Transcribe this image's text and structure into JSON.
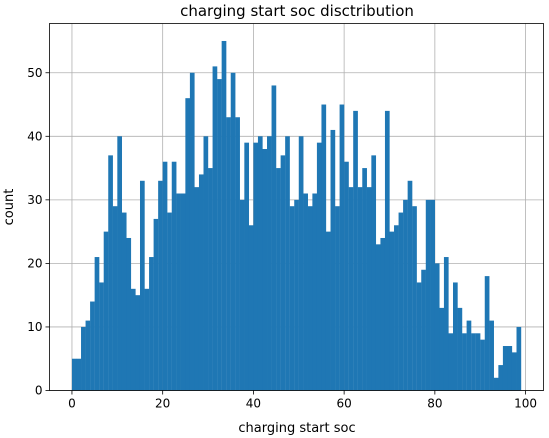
{
  "chart_data": {
    "type": "bar",
    "title": "charging start soc disctribution",
    "xlabel": "charging start soc",
    "ylabel": "count",
    "xlim": [
      -4.95,
      103.95
    ],
    "ylim": [
      0,
      57.75
    ],
    "xticks": [
      0,
      20,
      40,
      60,
      80,
      100
    ],
    "yticks": [
      0,
      10,
      20,
      30,
      40,
      50
    ],
    "grid": true,
    "bar_color": "#1f77b4",
    "bin_width": 1,
    "bin_start": 0,
    "values": [
      5,
      5,
      10,
      11,
      14,
      21,
      17,
      25,
      37,
      29,
      40,
      28,
      24,
      16,
      15,
      33,
      16,
      21,
      27,
      33,
      36,
      28,
      36,
      31,
      31,
      46,
      50,
      32,
      34,
      40,
      35,
      51,
      49,
      55,
      43,
      50,
      43,
      30,
      39,
      26,
      39,
      40,
      38,
      40,
      48,
      35,
      37,
      40,
      29,
      30,
      40,
      31,
      29,
      31,
      39,
      45,
      25,
      41,
      29,
      45,
      36,
      32,
      44,
      32,
      35,
      32,
      37,
      23,
      24,
      44,
      25,
      26,
      28,
      30,
      33,
      29,
      17,
      19,
      30,
      30,
      20,
      13,
      21,
      9,
      17,
      13,
      9,
      11,
      9,
      9,
      8,
      18,
      11,
      2,
      4,
      7,
      7,
      6,
      10
    ]
  }
}
